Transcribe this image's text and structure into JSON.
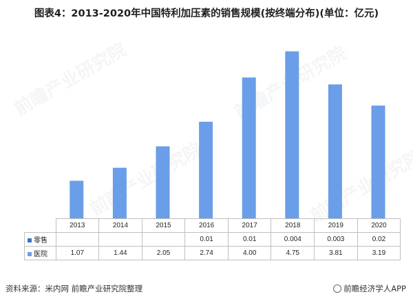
{
  "title": "图表4：2013-2020年中国特利加压素的销售规模(按终端分布)(单位：亿元)",
  "watermark": "前瞻产业研究院",
  "source": "资料来源：米内网 前瞻产业研究院整理",
  "app_label": "前瞻经济学人APP",
  "colors": {
    "bar": "#6a9ee8",
    "legend_retail": "#3b6fcf",
    "legend_hospital": "#6a9ee8",
    "grid": "#bfbfbf"
  },
  "chart_data": {
    "type": "bar",
    "categories": [
      "2013",
      "2014",
      "2015",
      "2016",
      "2017",
      "2018",
      "2019",
      "2020"
    ],
    "series": [
      {
        "name": "零售",
        "values": [
          null,
          null,
          null,
          0.01,
          0.01,
          0.004,
          0.003,
          0.02
        ],
        "labels": [
          "",
          "",
          "",
          "0.01",
          "0.01",
          "0.004",
          "0.003",
          "0.02"
        ]
      },
      {
        "name": "医院",
        "values": [
          1.07,
          1.44,
          2.05,
          2.74,
          4.0,
          4.75,
          3.81,
          3.19
        ],
        "labels": [
          "1.07",
          "1.44",
          "2.05",
          "2.74",
          "4.00",
          "4.75",
          "3.81",
          "3.19"
        ]
      }
    ],
    "stacked": true,
    "ylim": [
      0,
      5
    ],
    "legend": "data-table",
    "grid": false
  }
}
